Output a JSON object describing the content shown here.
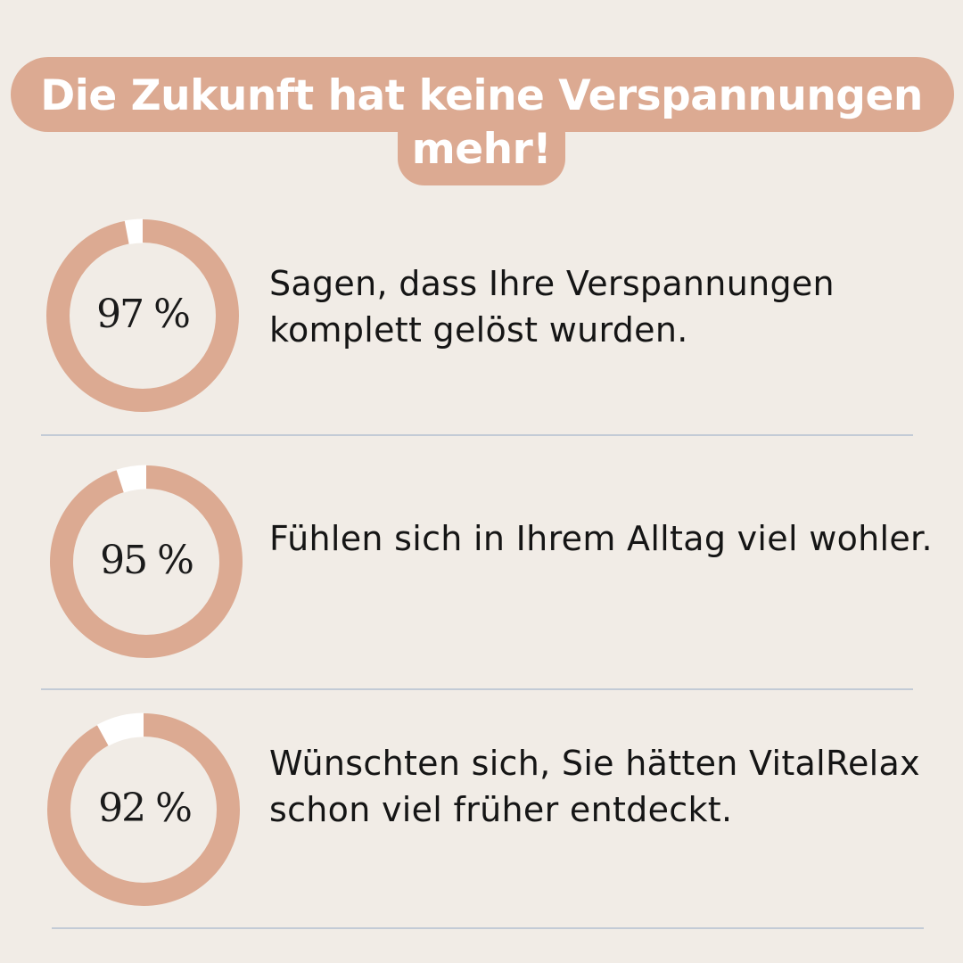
{
  "title": "Die Zukunft hat keine Verspannungen mehr!",
  "colors": {
    "background": "#f1ece6",
    "accent": "#dcaa92",
    "gap": "#ffffff",
    "divider": "#c3cbd6",
    "text": "#151515"
  },
  "chart_data": {
    "type": "pie",
    "series": [
      {
        "label": "97 %",
        "value": 97,
        "description": "Sagen, dass Ihre Verspannungen komplett gelöst wurden."
      },
      {
        "label": "95 %",
        "value": 95,
        "description": "Fühlen sich in Ihrem Alltag viel wohler."
      },
      {
        "label": "92 %",
        "value": 92,
        "description": "Wünschten sich, Sie hätten VitalRelax schon viel früher entdeckt."
      }
    ]
  }
}
